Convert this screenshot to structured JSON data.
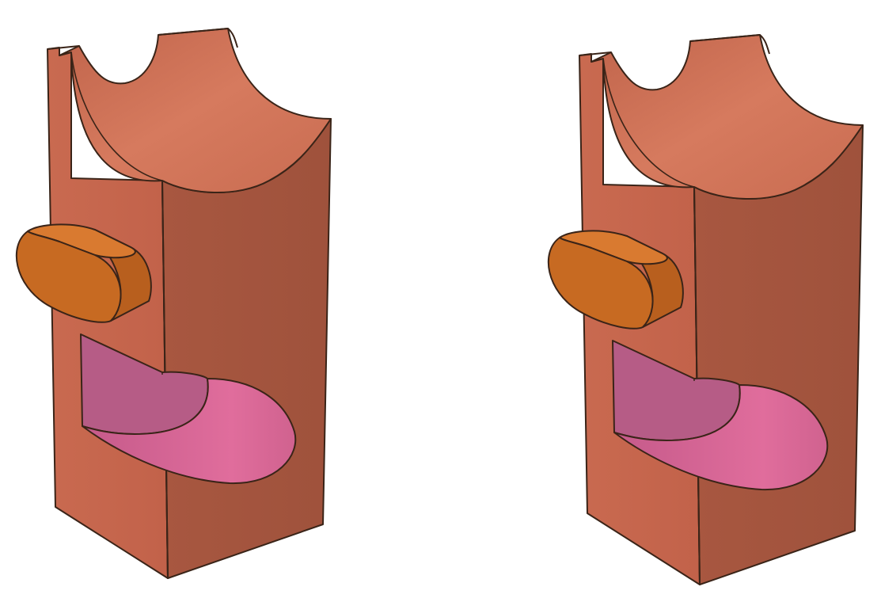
{
  "scene": {
    "background": "#ffffff",
    "models": [
      {
        "id": "solid-1",
        "description_visible": false,
        "colors": {
          "body_front": "#c8674e",
          "body_side": "#a85740",
          "cradle": "#cf7358",
          "tab_face": "#c76a22",
          "tab_top": "#d97a30",
          "tab_side": "#b85f1e",
          "cavity_back": "#b25a82",
          "cavity_floor": "#d66a98",
          "outline": "#3a2418"
        }
      },
      {
        "id": "solid-2",
        "description_visible": false,
        "colors": {
          "body_front": "#c8674e",
          "body_side": "#a85740",
          "cradle": "#cf7358",
          "tab_face": "#c76a22",
          "tab_top": "#d97a30",
          "tab_side": "#b85f1e",
          "cavity_back": "#b25a82",
          "cavity_floor": "#d66a98",
          "outline": "#3a2418"
        }
      }
    ]
  }
}
